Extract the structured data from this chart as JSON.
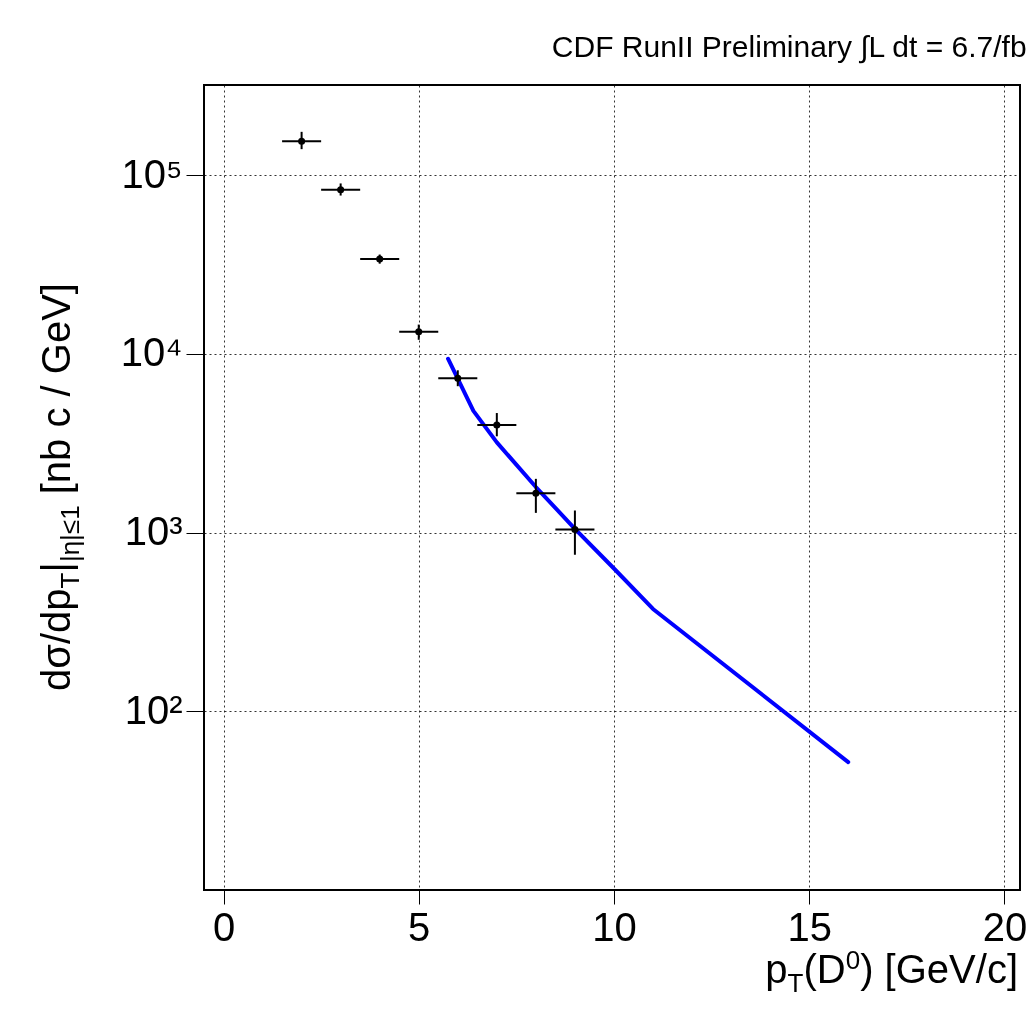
{
  "chart_data": {
    "type": "scatter",
    "title": "CDF RunII Preliminary ∫L dt = 6.7/fb",
    "xlabel": "p$_{T}$(D$^{0}$) [GeV/c]",
    "ylabel": "dσ/dp$_{T}$|$_{|η|≤1}$ [nb c / GeV]",
    "log": "y",
    "grid": true,
    "xlim": [
      -0.5,
      20.4
    ],
    "ylim": [
      10,
      320000
    ],
    "xticks": [
      0,
      5,
      10,
      15,
      20
    ],
    "yticks": [
      {
        "value": 100,
        "label": "10²"
      },
      {
        "value": 1000,
        "label": "10³"
      },
      {
        "value": 10000,
        "label": "10⁴"
      },
      {
        "value": 100000,
        "label": "10⁵"
      }
    ],
    "series": [
      {
        "marker": "circle",
        "color": "#000000",
        "x": [
          2,
          3,
          4,
          5,
          6,
          7,
          8,
          9
        ],
        "values": [
          155000,
          83000,
          34000,
          13300,
          7300,
          4000,
          1660,
          1040
        ],
        "xerrors": [
          0.5,
          0.5,
          0.5,
          0.5,
          0.5,
          0.5,
          0.5,
          0.5
        ],
        "errors": [
          [
            140000,
            175000
          ],
          [
            77000,
            90000
          ],
          [
            32000,
            36000
          ],
          [
            12000,
            14600
          ],
          [
            6600,
            8100
          ],
          [
            3460,
            4670
          ],
          [
            1290,
            2000
          ],
          [
            752,
            1330
          ]
        ]
      },
      {
        "type": "line",
        "color": "#0000ff",
        "x": [
          5.75,
          6.4,
          7,
          8,
          9,
          10,
          11,
          16
        ],
        "values": [
          9400,
          4800,
          3200,
          1800,
          1050,
          630,
          374,
          52
        ]
      }
    ]
  }
}
